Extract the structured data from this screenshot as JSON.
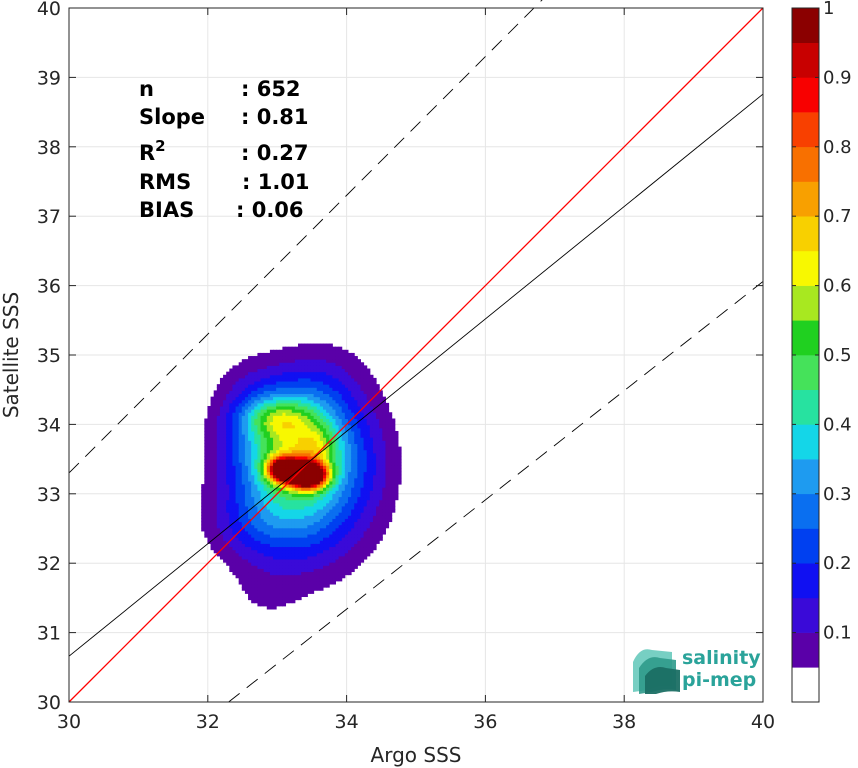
{
  "chart_data": {
    "type": "heatmap",
    "subtype": "filled-contour density scatter",
    "xlabel": "Argo SSS",
    "ylabel": "Satellite SSS",
    "xlim": [
      30,
      40
    ],
    "ylim": [
      30,
      40
    ],
    "xticks": [
      "30",
      "32",
      "34",
      "36",
      "38",
      "40"
    ],
    "yticks": [
      "30",
      "31",
      "32",
      "33",
      "34",
      "35",
      "36",
      "37",
      "38",
      "39",
      "40"
    ],
    "grid": true,
    "stats": [
      {
        "label": "n",
        "value": ": 652"
      },
      {
        "label": "Slope",
        "value": ": 0.81"
      },
      {
        "label": "R",
        "sup": "2",
        "value": ": 0.27"
      },
      {
        "label": "RMS",
        "value": ": 1.01"
      },
      {
        "label": "BIAS",
        "value": ": 0.06"
      }
    ],
    "reference_lines": [
      {
        "kind": "identity",
        "color": "#ff0000",
        "style": "solid",
        "x": [
          30,
          40
        ],
        "y": [
          30,
          40
        ]
      },
      {
        "kind": "regression",
        "color": "#000000",
        "style": "solid",
        "x": [
          30,
          40
        ],
        "y": [
          30.66,
          38.76
        ]
      },
      {
        "kind": "upper-bound",
        "color": "#000000",
        "style": "dashed",
        "x": [
          30,
          40
        ],
        "y": [
          33.3,
          43.3
        ]
      },
      {
        "kind": "lower-bound",
        "color": "#000000",
        "style": "dashed",
        "x": [
          32.3,
          40
        ],
        "y": [
          30,
          36.06
        ]
      }
    ],
    "density_peaks": [
      {
        "x": 33.45,
        "y": 33.28,
        "sx": 0.18,
        "sy": 0.13,
        "amp": 1.0
      },
      {
        "x": 33.1,
        "y": 33.35,
        "sx": 0.16,
        "sy": 0.12,
        "amp": 0.8
      },
      {
        "x": 33.35,
        "y": 33.1,
        "sx": 0.65,
        "sy": 0.75,
        "amp": 0.35
      },
      {
        "x": 33.2,
        "y": 33.8,
        "sx": 0.55,
        "sy": 0.55,
        "amp": 0.35
      },
      {
        "x": 33.0,
        "y": 34.1,
        "sx": 0.35,
        "sy": 0.18,
        "amp": 0.18
      },
      {
        "x": 33.6,
        "y": 33.7,
        "sx": 0.2,
        "sy": 0.2,
        "amp": 0.12
      },
      {
        "x": 32.6,
        "y": 32.55,
        "sx": 0.45,
        "sy": 0.35,
        "amp": 0.08
      },
      {
        "x": 33.7,
        "y": 34.6,
        "sx": 0.45,
        "sy": 0.45,
        "amp": 0.07
      },
      {
        "x": 32.6,
        "y": 34.4,
        "sx": 0.35,
        "sy": 0.4,
        "amp": 0.05
      },
      {
        "x": 32.8,
        "y": 31.5,
        "sx": 0.4,
        "sy": 0.35,
        "amp": 0.035
      },
      {
        "x": 34.3,
        "y": 33.6,
        "sx": 0.35,
        "sy": 0.6,
        "amp": 0.045
      }
    ],
    "colorbar": {
      "ticks": [
        "0.1",
        "0.2",
        "0.3",
        "0.4",
        "0.5",
        "0.6",
        "0.7",
        "0.8",
        "0.9",
        "1"
      ],
      "min": 0,
      "max": 1,
      "levels": [
        0.05,
        0.1,
        0.15,
        0.2,
        0.25,
        0.3,
        0.35,
        0.4,
        0.45,
        0.5,
        0.55,
        0.6,
        0.65,
        0.7,
        0.75,
        0.8,
        0.85,
        0.9,
        0.95
      ],
      "colors": [
        "#ffffff",
        "#5a00a8",
        "#3a0ad8",
        "#1010f2",
        "#0040f0",
        "#0a6ff0",
        "#1e9bf0",
        "#14d6e8",
        "#27e2a0",
        "#45e25a",
        "#20d020",
        "#a8e820",
        "#f8f800",
        "#f8d000",
        "#f8a000",
        "#f87000",
        "#f84000",
        "#f80000",
        "#c80000",
        "#8b0000"
      ]
    }
  },
  "logo": {
    "line1": "salinity",
    "line2": "pi-mep"
  }
}
